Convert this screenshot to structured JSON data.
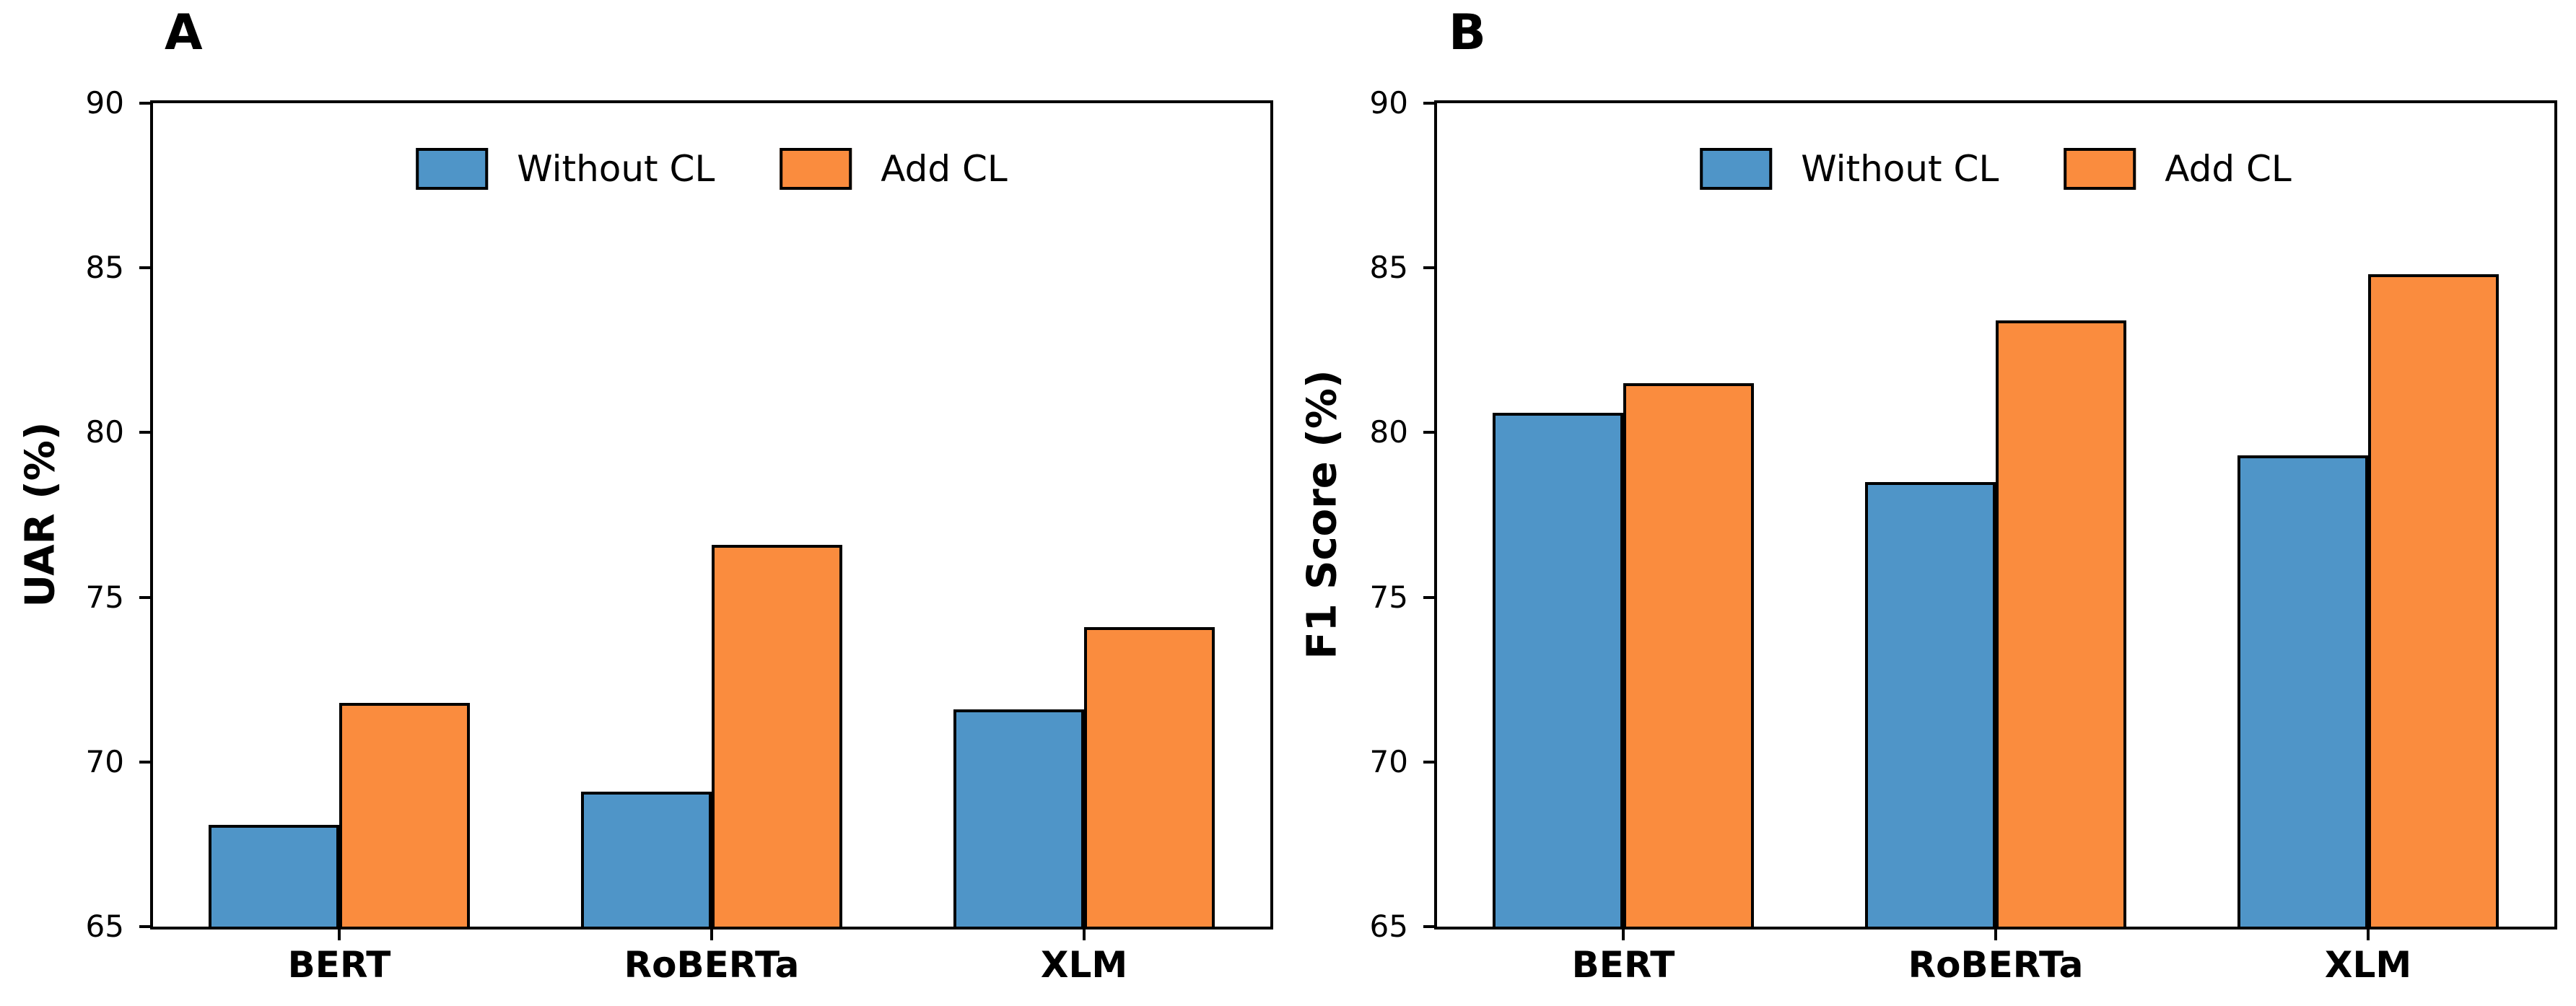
{
  "figure": {
    "background": "#ffffff",
    "panels": [
      "A",
      "B"
    ]
  },
  "legend": {
    "items": [
      {
        "label": "Without CL",
        "color": "#4f95c8"
      },
      {
        "label": "Add CL",
        "color": "#fa8c3e"
      }
    ],
    "position": "upper center",
    "frame": false
  },
  "colors": {
    "without_cl": "#4f95c8",
    "add_cl": "#fa8c3e",
    "edge": "#000000",
    "text": "#000000"
  },
  "chart_data": [
    {
      "type": "bar",
      "panel_label": "A",
      "title": "",
      "xlabel": "",
      "ylabel": "UAR (%)",
      "categories": [
        "BERT",
        "RoBERTa",
        "XLM"
      ],
      "series": [
        {
          "name": "Without CL",
          "color": "#4f95c8",
          "values": [
            68.1,
            69.1,
            71.6
          ]
        },
        {
          "name": "Add CL",
          "color": "#fa8c3e",
          "values": [
            71.8,
            76.6,
            74.1
          ]
        }
      ],
      "ylim": [
        65,
        90
      ],
      "yticks": [
        65,
        70,
        75,
        80,
        85,
        90
      ],
      "grid": false,
      "legend_position": "upper center",
      "bar_width_fraction": 0.35
    },
    {
      "type": "bar",
      "panel_label": "B",
      "title": "",
      "xlabel": "",
      "ylabel": "F1 Score (%)",
      "categories": [
        "BERT",
        "RoBERTa",
        "XLM"
      ],
      "series": [
        {
          "name": "Without CL",
          "color": "#4f95c8",
          "values": [
            80.6,
            78.5,
            79.3
          ]
        },
        {
          "name": "Add CL",
          "color": "#fa8c3e",
          "values": [
            81.5,
            83.4,
            84.8
          ]
        }
      ],
      "ylim": [
        65,
        90
      ],
      "yticks": [
        65,
        70,
        75,
        80,
        85,
        90
      ],
      "grid": false,
      "legend_position": "upper center",
      "bar_width_fraction": 0.35
    }
  ]
}
